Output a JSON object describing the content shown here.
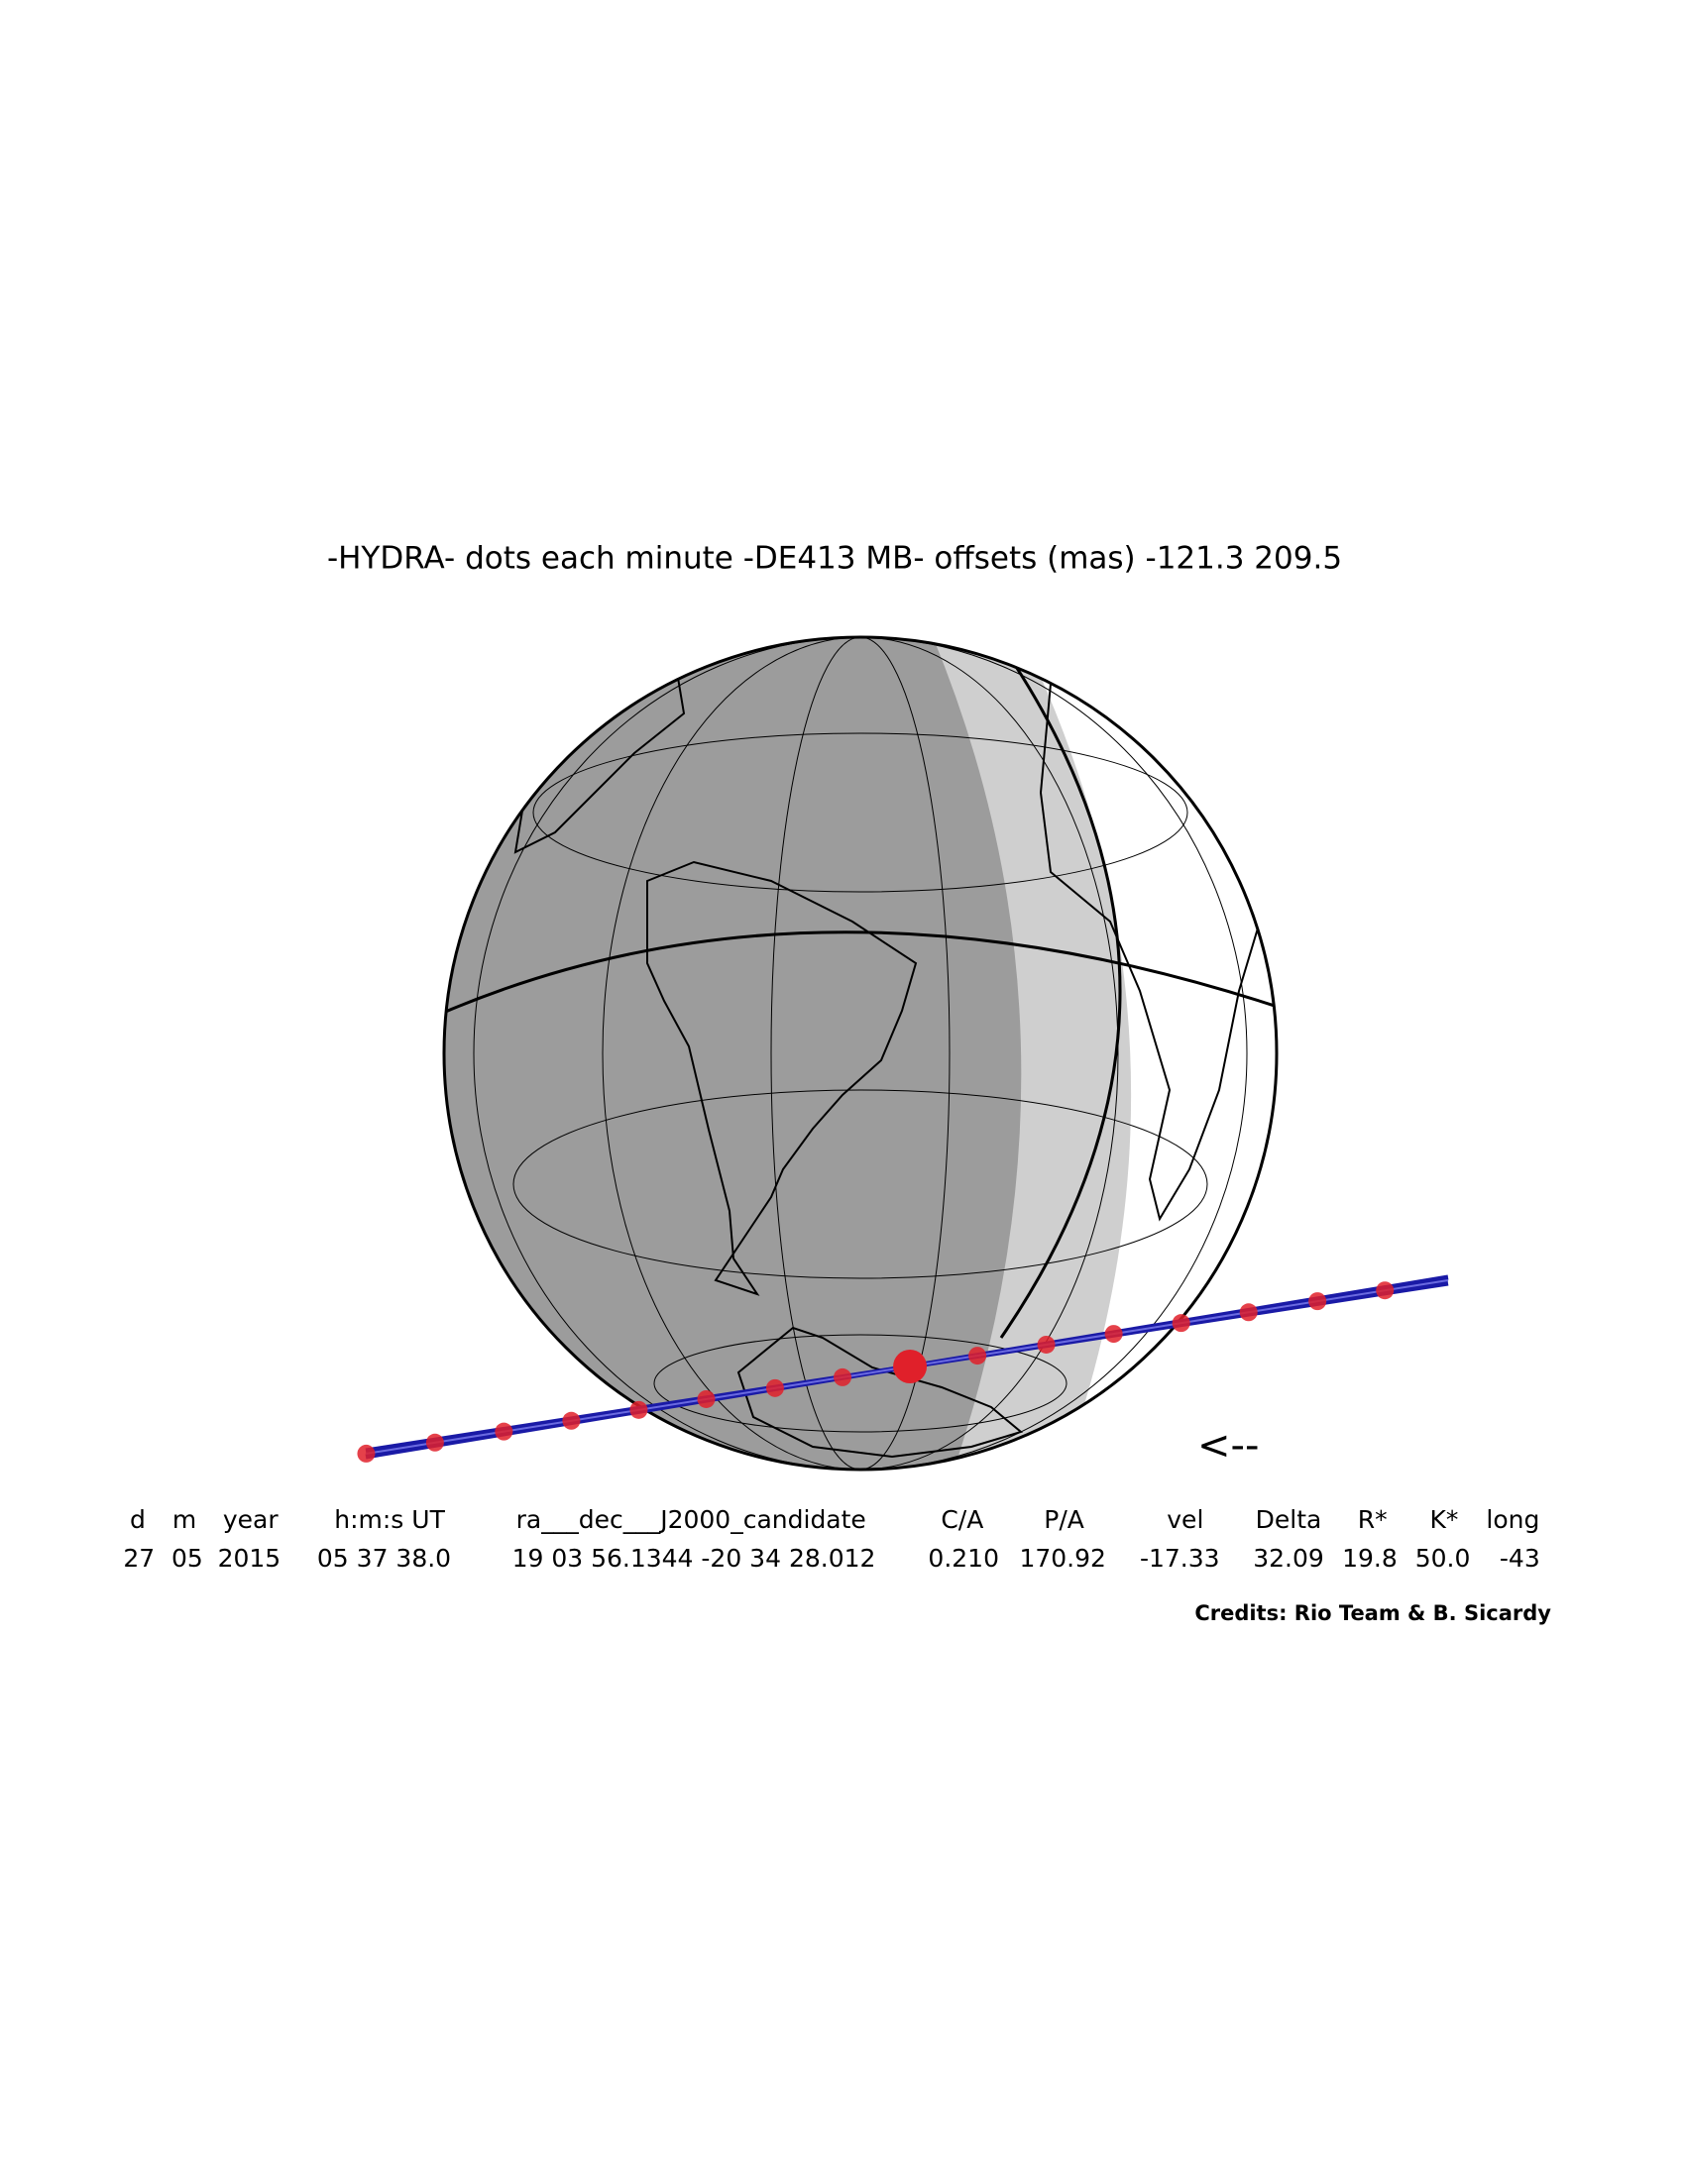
{
  "title": "-HYDRA- dots each minute -DE413 MB- offsets (mas) -121.3  209.5",
  "direction": "<--",
  "table": {
    "headers": [
      "d",
      "m",
      "year",
      "h:m:s UT",
      "ra___dec___J2000_candidate",
      "C/A",
      "P/A",
      "vel",
      "Delta",
      "R*",
      "K*",
      "long"
    ],
    "rows": [
      [
        "27",
        "05",
        "2015",
        "05 37 38.0",
        "19 03 56.1344 -20 34 28.012",
        "0.210",
        "170.92",
        "-17.33",
        "32.09",
        "19.8",
        "50.0",
        "-43"
      ]
    ]
  },
  "credits": "Credits: Rio Team & B. Sicardy"
}
